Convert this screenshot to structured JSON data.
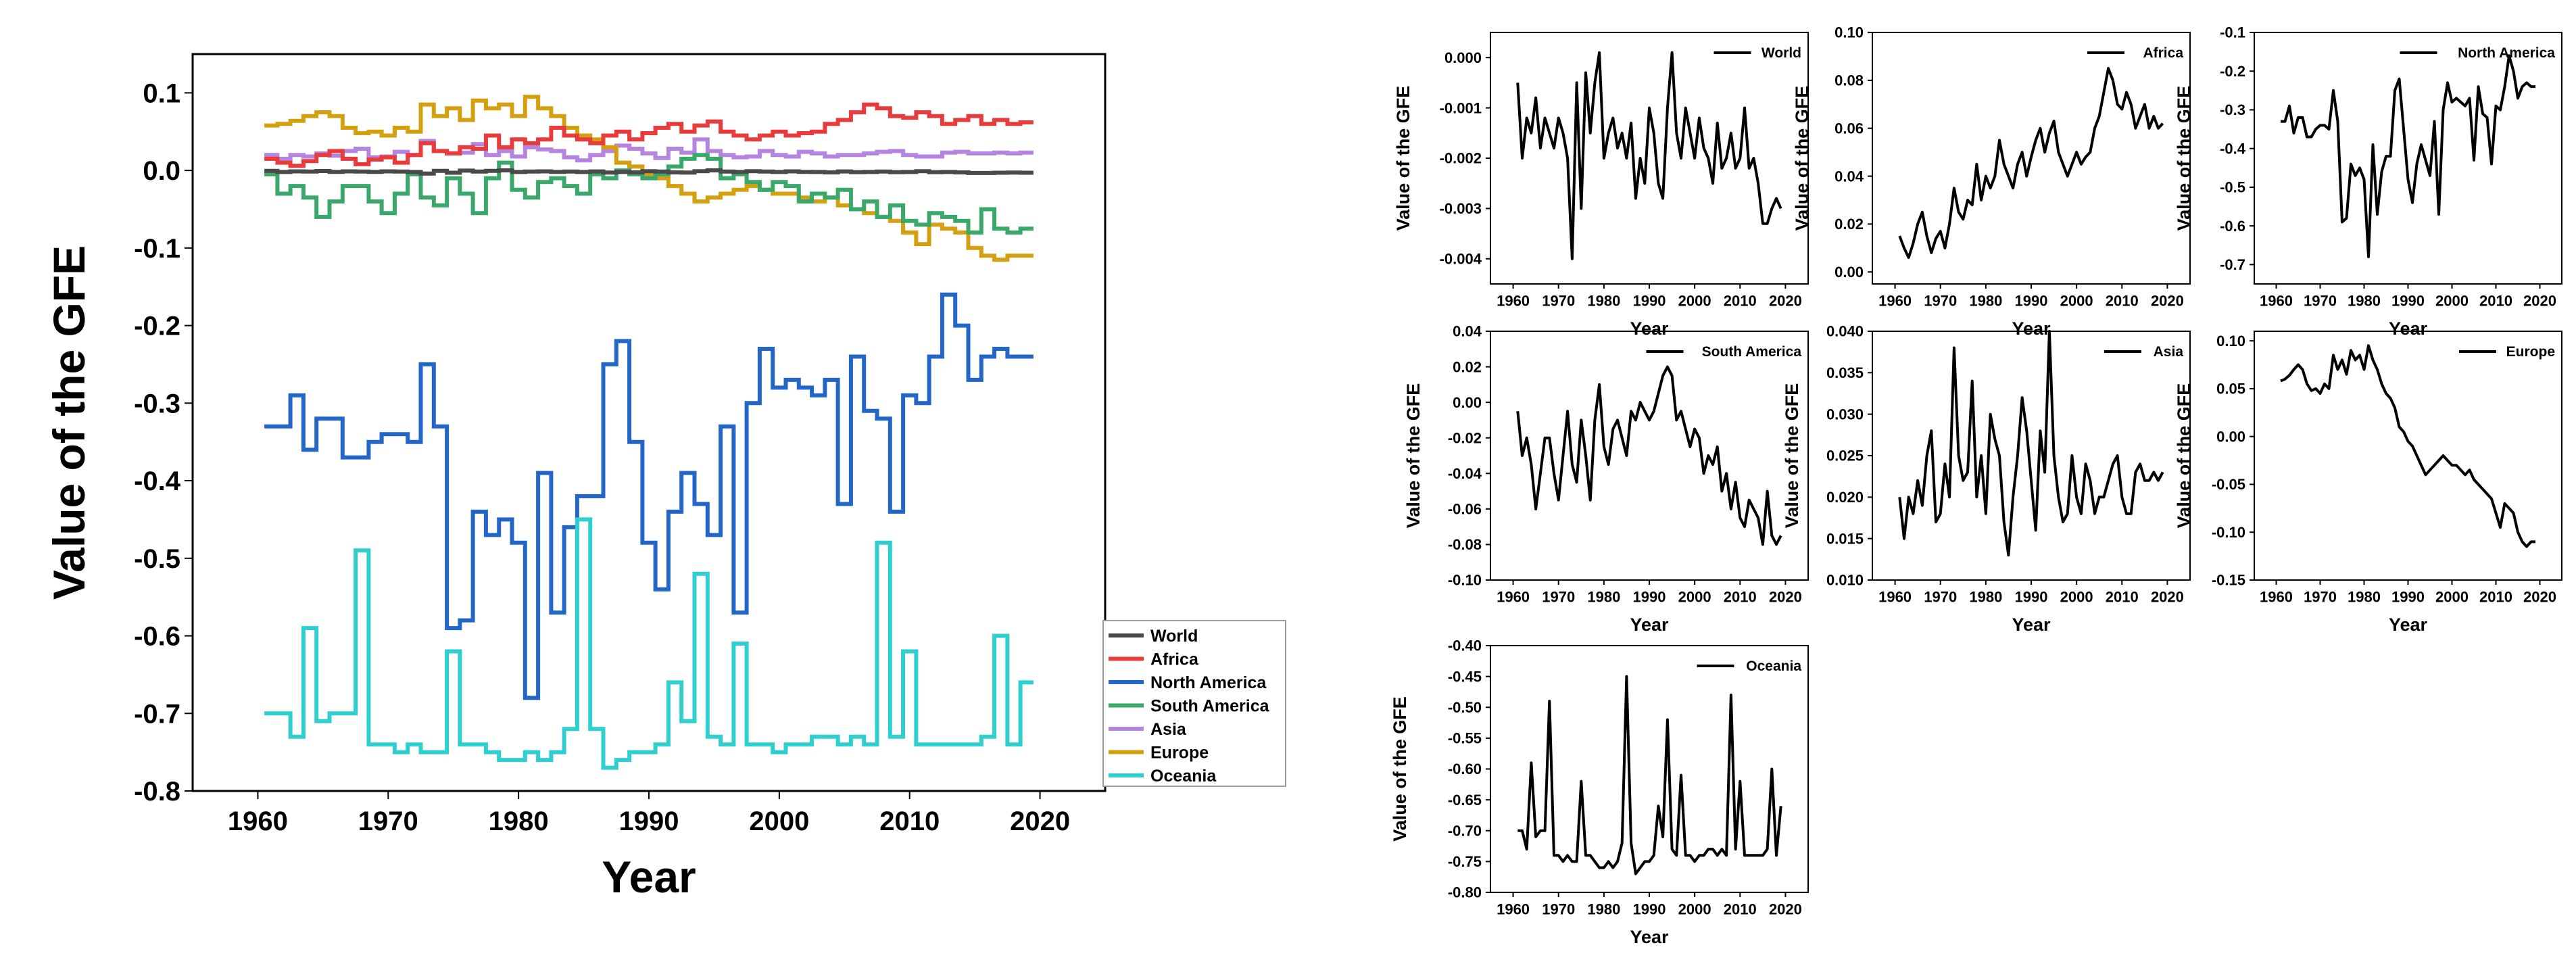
{
  "figure": {
    "main_ylabel": "Value of the GFE",
    "main_xlabel": "Year",
    "small_ylabel": "Value of the GFE",
    "small_xlabel": "Year"
  },
  "colors": {
    "World": "#4a4a4a",
    "Africa": "#e83c3c",
    "North America": "#2366c9",
    "South America": "#3aa86a",
    "Asia": "#b583e0",
    "Europe": "#d4a010",
    "Oceania": "#2fcfcf"
  },
  "chart_data": [
    {
      "id": "main",
      "type": "line",
      "step": true,
      "title": "",
      "xlabel": "Year",
      "ylabel": "Value of the GFE",
      "xlim": [
        1955,
        2025
      ],
      "ylim": [
        -0.8,
        0.15
      ],
      "xticks": [
        1960,
        1970,
        1980,
        1990,
        2000,
        2010,
        2020
      ],
      "yticks": [
        0.1,
        0.0,
        -0.1,
        -0.2,
        -0.3,
        -0.4,
        -0.5,
        -0.6,
        -0.7,
        -0.8
      ],
      "ytick_labels": [
        "0.1",
        "0.0",
        "-0.1",
        "-0.2",
        "-0.3",
        "-0.4",
        "-0.5",
        "-0.6",
        "-0.7",
        "-0.8"
      ],
      "legend": "bottom-right outside",
      "x_start": 1961,
      "series": [
        {
          "name": "World",
          "values": [
            -0.0005,
            -0.002,
            -0.0012,
            -0.0015,
            -0.0008,
            -0.0018,
            -0.0012,
            -0.0015,
            -0.0018,
            -0.0012,
            -0.0015,
            -0.002,
            -0.004,
            -0.0005,
            -0.003,
            -0.0003,
            -0.0015,
            -0.0005,
            0.0001,
            -0.002,
            -0.0015,
            -0.0012,
            -0.0018,
            -0.0015,
            -0.002,
            -0.0013,
            -0.0028,
            -0.002,
            -0.0025,
            -0.001,
            -0.0015,
            -0.0025,
            -0.0028,
            -0.001,
            0.0001,
            -0.0015,
            -0.002,
            -0.001,
            -0.0015,
            -0.002,
            -0.0012,
            -0.0018,
            -0.002,
            -0.0025,
            -0.0013,
            -0.0022,
            -0.002,
            -0.0015,
            -0.0022,
            -0.002,
            -0.001,
            -0.0022,
            -0.002,
            -0.0025,
            -0.0033,
            -0.0033,
            -0.003,
            -0.0028,
            -0.003
          ]
        },
        {
          "name": "Africa",
          "values": [
            0.015,
            0.01,
            0.006,
            0.012,
            0.02,
            0.025,
            0.015,
            0.008,
            0.014,
            0.017,
            0.01,
            0.02,
            0.035,
            0.025,
            0.022,
            0.03,
            0.028,
            0.045,
            0.03,
            0.04,
            0.035,
            0.04,
            0.055,
            0.045,
            0.04,
            0.035,
            0.045,
            0.05,
            0.04,
            0.048,
            0.055,
            0.06,
            0.05,
            0.058,
            0.063,
            0.05,
            0.045,
            0.04,
            0.045,
            0.05,
            0.045,
            0.048,
            0.05,
            0.06,
            0.065,
            0.075,
            0.085,
            0.08,
            0.07,
            0.068,
            0.075,
            0.07,
            0.06,
            0.065,
            0.07,
            0.06,
            0.065,
            0.06,
            0.062
          ]
        },
        {
          "name": "North America",
          "values": [
            -0.33,
            -0.33,
            -0.29,
            -0.36,
            -0.32,
            -0.32,
            -0.37,
            -0.37,
            -0.35,
            -0.34,
            -0.34,
            -0.35,
            -0.25,
            -0.33,
            -0.59,
            -0.58,
            -0.44,
            -0.47,
            -0.45,
            -0.48,
            -0.68,
            -0.39,
            -0.57,
            -0.46,
            -0.42,
            -0.42,
            -0.25,
            -0.22,
            -0.35,
            -0.48,
            -0.54,
            -0.44,
            -0.39,
            -0.43,
            -0.47,
            -0.33,
            -0.57,
            -0.3,
            -0.23,
            -0.28,
            -0.27,
            -0.28,
            -0.29,
            -0.27,
            -0.43,
            -0.24,
            -0.31,
            -0.32,
            -0.44,
            -0.29,
            -0.3,
            -0.24,
            -0.16,
            -0.2,
            -0.27,
            -0.24,
            -0.23,
            -0.24,
            -0.24
          ]
        },
        {
          "name": "South America",
          "values": [
            -0.005,
            -0.03,
            -0.02,
            -0.035,
            -0.06,
            -0.04,
            -0.02,
            -0.02,
            -0.04,
            -0.055,
            -0.03,
            -0.005,
            -0.035,
            -0.045,
            -0.01,
            -0.03,
            -0.055,
            -0.01,
            0.01,
            -0.025,
            -0.035,
            -0.015,
            -0.01,
            -0.02,
            -0.03,
            -0.005,
            -0.01,
            0.0,
            -0.005,
            -0.01,
            -0.005,
            0.005,
            0.015,
            0.02,
            0.015,
            -0.01,
            -0.005,
            -0.015,
            -0.025,
            -0.015,
            -0.02,
            -0.04,
            -0.03,
            -0.035,
            -0.025,
            -0.05,
            -0.04,
            -0.06,
            -0.045,
            -0.065,
            -0.07,
            -0.055,
            -0.06,
            -0.065,
            -0.08,
            -0.05,
            -0.075,
            -0.08,
            -0.075
          ]
        },
        {
          "name": "Asia",
          "values": [
            0.02,
            0.015,
            0.02,
            0.018,
            0.022,
            0.019,
            0.025,
            0.028,
            0.017,
            0.018,
            0.024,
            0.02,
            0.038,
            0.025,
            0.022,
            0.023,
            0.034,
            0.02,
            0.025,
            0.018,
            0.03,
            0.027,
            0.025,
            0.017,
            0.013,
            0.02,
            0.025,
            0.032,
            0.028,
            0.022,
            0.016,
            0.028,
            0.023,
            0.04,
            0.025,
            0.02,
            0.017,
            0.018,
            0.025,
            0.02,
            0.018,
            0.024,
            0.022,
            0.018,
            0.02,
            0.02,
            0.022,
            0.024,
            0.025,
            0.02,
            0.018,
            0.018,
            0.023,
            0.024,
            0.022,
            0.022,
            0.023,
            0.022,
            0.023
          ]
        },
        {
          "name": "Europe",
          "values": [
            0.058,
            0.06,
            0.064,
            0.07,
            0.075,
            0.07,
            0.055,
            0.048,
            0.05,
            0.045,
            0.055,
            0.05,
            0.085,
            0.07,
            0.08,
            0.065,
            0.09,
            0.08,
            0.085,
            0.07,
            0.095,
            0.08,
            0.07,
            0.055,
            0.045,
            0.04,
            0.03,
            0.01,
            0.005,
            -0.005,
            -0.01,
            -0.02,
            -0.03,
            -0.04,
            -0.035,
            -0.03,
            -0.025,
            -0.02,
            -0.025,
            -0.03,
            -0.03,
            -0.035,
            -0.04,
            -0.035,
            -0.045,
            -0.05,
            -0.055,
            -0.06,
            -0.065,
            -0.08,
            -0.095,
            -0.07,
            -0.075,
            -0.08,
            -0.1,
            -0.11,
            -0.115,
            -0.11,
            -0.11
          ]
        },
        {
          "name": "Oceania",
          "values": [
            -0.7,
            -0.7,
            -0.73,
            -0.59,
            -0.71,
            -0.7,
            -0.7,
            -0.49,
            -0.74,
            -0.74,
            -0.75,
            -0.74,
            -0.75,
            -0.75,
            -0.62,
            -0.74,
            -0.74,
            -0.75,
            -0.76,
            -0.76,
            -0.75,
            -0.76,
            -0.75,
            -0.72,
            -0.45,
            -0.72,
            -0.77,
            -0.76,
            -0.75,
            -0.75,
            -0.74,
            -0.66,
            -0.71,
            -0.52,
            -0.73,
            -0.74,
            -0.61,
            -0.74,
            -0.74,
            -0.75,
            -0.74,
            -0.74,
            -0.73,
            -0.73,
            -0.74,
            -0.73,
            -0.74,
            -0.48,
            -0.73,
            -0.62,
            -0.74,
            -0.74,
            -0.74,
            -0.74,
            -0.74,
            -0.73,
            -0.6,
            -0.74,
            -0.66
          ]
        }
      ]
    },
    {
      "id": "world",
      "type": "line",
      "title": "World",
      "legend_label": "World",
      "xlabel": "Year",
      "ylabel": "Value of the GFE",
      "xlim": [
        1955,
        2025
      ],
      "ylim": [
        -0.0045,
        0.0005
      ],
      "xticks": [
        1960,
        1970,
        1980,
        1990,
        2000,
        2010,
        2020
      ],
      "yticks": [
        0.0,
        -0.001,
        -0.002,
        -0.003,
        -0.004
      ],
      "ytick_labels": [
        "0.000",
        "-0.001",
        "-0.002",
        "-0.003",
        "-0.004"
      ],
      "series_ref": "World"
    },
    {
      "id": "africa",
      "type": "line",
      "title": "Africa",
      "legend_label": "Africa",
      "xlabel": "Year",
      "ylabel": "Value of the GFE",
      "xlim": [
        1955,
        2025
      ],
      "ylim": [
        -0.005,
        0.1
      ],
      "xticks": [
        1960,
        1970,
        1980,
        1990,
        2000,
        2010,
        2020
      ],
      "yticks": [
        0.0,
        0.02,
        0.04,
        0.06,
        0.08,
        0.1
      ],
      "ytick_labels": [
        "0.00",
        "0.02",
        "0.04",
        "0.06",
        "0.08",
        "0.10"
      ],
      "series_ref": "Africa"
    },
    {
      "id": "north-america",
      "type": "line",
      "title": "North America",
      "legend_label": "North America",
      "xlabel": "Year",
      "ylabel": "Value of the GFE",
      "xlim": [
        1955,
        2025
      ],
      "ylim": [
        -0.75,
        -0.1
      ],
      "xticks": [
        1960,
        1970,
        1980,
        1990,
        2000,
        2010,
        2020
      ],
      "yticks": [
        -0.1,
        -0.2,
        -0.3,
        -0.4,
        -0.5,
        -0.6,
        -0.7
      ],
      "ytick_labels": [
        "-0.1",
        "-0.2",
        "-0.3",
        "-0.4",
        "-0.5",
        "-0.6",
        "-0.7"
      ],
      "series_ref": "North America"
    },
    {
      "id": "south-america",
      "type": "line",
      "title": "South America",
      "legend_label": "South America",
      "xlabel": "Year",
      "ylabel": "Value of the GFE",
      "xlim": [
        1955,
        2025
      ],
      "ylim": [
        -0.1,
        0.04
      ],
      "xticks": [
        1960,
        1970,
        1980,
        1990,
        2000,
        2010,
        2020
      ],
      "yticks": [
        0.04,
        0.02,
        0.0,
        -0.02,
        -0.04,
        -0.06,
        -0.08,
        -0.1
      ],
      "ytick_labels": [
        "0.04",
        "0.02",
        "0.00",
        "-0.02",
        "-0.04",
        "-0.06",
        "-0.08",
        "-0.10"
      ],
      "series_ref": "South America"
    },
    {
      "id": "asia",
      "type": "line",
      "title": "Asia",
      "legend_label": "Asia",
      "xlabel": "Year",
      "ylabel": "Value of the GFE",
      "xlim": [
        1955,
        2025
      ],
      "ylim": [
        0.01,
        0.04
      ],
      "xticks": [
        1960,
        1970,
        1980,
        1990,
        2000,
        2010,
        2020
      ],
      "yticks": [
        0.04,
        0.035,
        0.03,
        0.025,
        0.02,
        0.015,
        0.01
      ],
      "ytick_labels": [
        "0.040",
        "0.035",
        "0.030",
        "0.025",
        "0.020",
        "0.015",
        "0.010"
      ],
      "series_ref": "Asia"
    },
    {
      "id": "europe",
      "type": "line",
      "title": "Europe",
      "legend_label": "Europe",
      "xlabel": "Year",
      "ylabel": "Value of the GFE",
      "xlim": [
        1955,
        2025
      ],
      "ylim": [
        -0.15,
        0.11
      ],
      "xticks": [
        1960,
        1970,
        1980,
        1990,
        2000,
        2010,
        2020
      ],
      "yticks": [
        0.1,
        0.05,
        0.0,
        -0.05,
        -0.1,
        -0.15
      ],
      "ytick_labels": [
        "0.10",
        "0.05",
        "0.00",
        "-0.05",
        "-0.10",
        "-0.15"
      ],
      "series_ref": "Europe"
    },
    {
      "id": "oceania",
      "type": "line",
      "title": "Oceania",
      "legend_label": "Oceania",
      "xlabel": "Year",
      "ylabel": "Value of the GFE",
      "xlim": [
        1955,
        2025
      ],
      "ylim": [
        -0.8,
        -0.4
      ],
      "xticks": [
        1960,
        1970,
        1980,
        1990,
        2000,
        2010,
        2020
      ],
      "yticks": [
        -0.4,
        -0.45,
        -0.5,
        -0.55,
        -0.6,
        -0.65,
        -0.7,
        -0.75,
        -0.8
      ],
      "ytick_labels": [
        "-0.40",
        "-0.45",
        "-0.50",
        "-0.55",
        "-0.60",
        "-0.65",
        "-0.70",
        "-0.75",
        "-0.80"
      ],
      "series_ref": "Oceania"
    }
  ]
}
